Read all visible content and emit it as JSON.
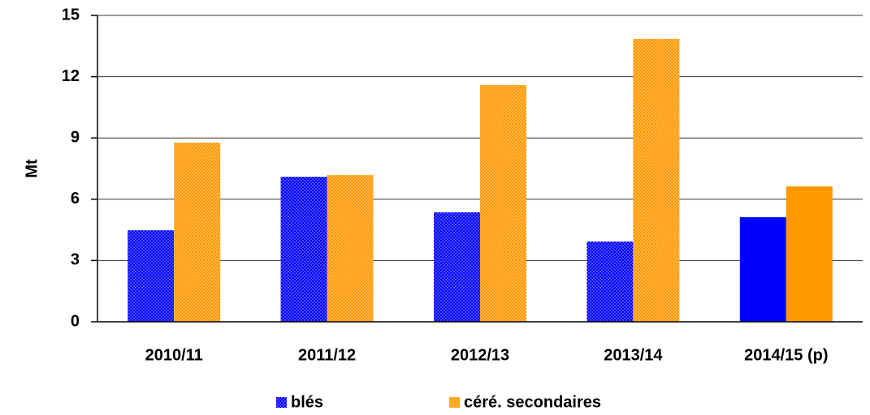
{
  "chart_data": {
    "type": "bar",
    "categories": [
      "2010/11",
      "2011/12",
      "2012/13",
      "2013/14",
      "2014/15 (p)"
    ],
    "series": [
      {
        "name": "blés",
        "color": "#0000ff",
        "values": [
          4.48,
          7.1,
          5.36,
          3.93,
          5.12
        ]
      },
      {
        "name": "céré. secondaires",
        "color": "#ff9900",
        "values": [
          8.77,
          7.18,
          11.59,
          13.85,
          6.63
        ]
      }
    ],
    "patterned": [
      true,
      true,
      true,
      true,
      false
    ],
    "ylabel": "Mt",
    "ylim": [
      0,
      15
    ],
    "yticks": [
      0,
      3,
      6,
      9,
      12,
      15
    ],
    "grid": true,
    "legend": "bottom"
  }
}
